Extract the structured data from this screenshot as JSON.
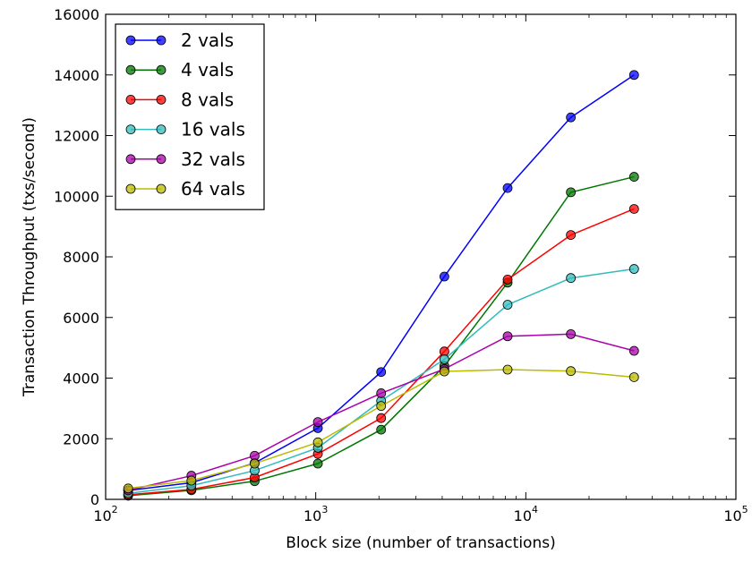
{
  "chart_data": {
    "type": "line",
    "xlabel": "Block size (number of transactions)",
    "ylabel": "Transaction Throughput (txs/second)",
    "xscale": "log",
    "xlim": [
      100,
      100000
    ],
    "ylim": [
      0,
      16000
    ],
    "x_ticks": [
      {
        "value": 100,
        "base": "10",
        "exp": "2"
      },
      {
        "value": 1000,
        "base": "10",
        "exp": "3"
      },
      {
        "value": 10000,
        "base": "10",
        "exp": "4"
      },
      {
        "value": 100000,
        "base": "10",
        "exp": "5"
      }
    ],
    "y_ticks": [
      0,
      2000,
      4000,
      6000,
      8000,
      10000,
      12000,
      14000,
      16000
    ],
    "grid": false,
    "legend_position": "top-left",
    "x": [
      128,
      256,
      512,
      1024,
      2048,
      4096,
      8192,
      16384,
      32768
    ],
    "series": [
      {
        "name": "2 vals",
        "color": "#0000ff",
        "values": [
          290,
          550,
          1200,
          2350,
          4200,
          7350,
          10270,
          12600,
          14000
        ]
      },
      {
        "name": "4 vals",
        "color": "#007700",
        "values": [
          120,
          300,
          600,
          1180,
          2300,
          4400,
          7150,
          10130,
          10640
        ]
      },
      {
        "name": "8 vals",
        "color": "#ff0000",
        "values": [
          150,
          330,
          720,
          1500,
          2680,
          4880,
          7250,
          8720,
          9580
        ]
      },
      {
        "name": "16 vals",
        "color": "#33bbbb",
        "values": [
          200,
          450,
          950,
          1700,
          3250,
          4620,
          6420,
          7300,
          7600
        ]
      },
      {
        "name": "32 vals",
        "color": "#aa00aa",
        "values": [
          300,
          780,
          1440,
          2550,
          3500,
          4300,
          5380,
          5450,
          4900
        ]
      },
      {
        "name": "64 vals",
        "color": "#bbbb00",
        "values": [
          360,
          620,
          1180,
          1880,
          3080,
          4220,
          4280,
          4230,
          4030
        ]
      }
    ]
  }
}
